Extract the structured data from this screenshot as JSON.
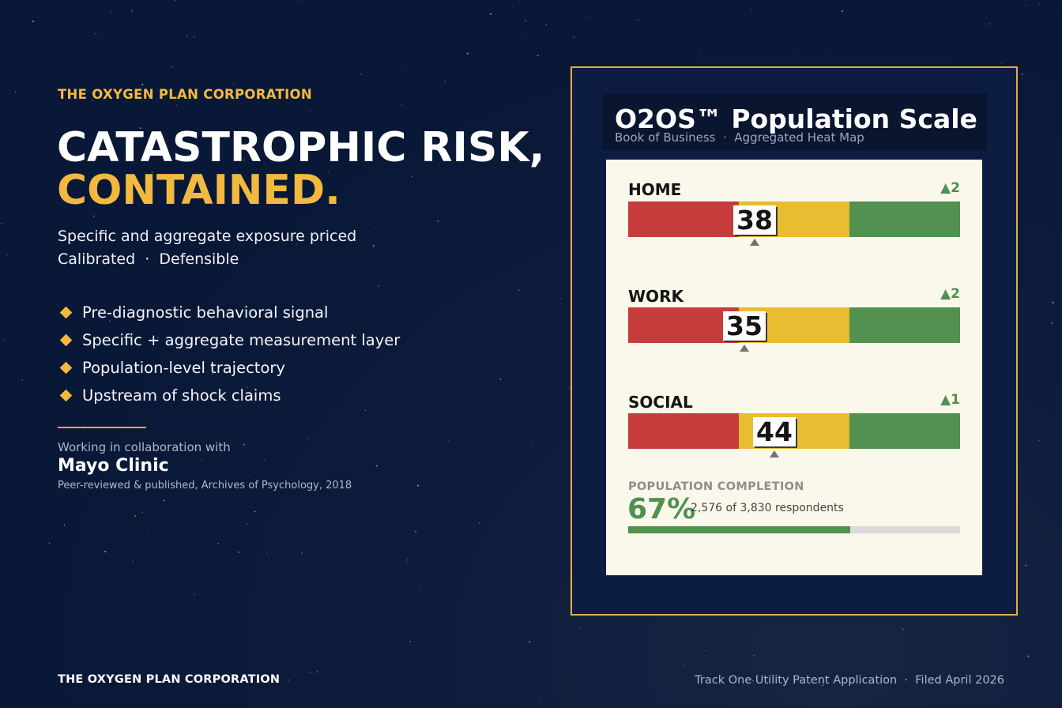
{
  "brand": {
    "eyebrow": "THE OXYGEN PLAN CORPORATION",
    "accent_color": "#f2b940"
  },
  "hero": {
    "headline_line1": "CATASTROPHIC RISK,",
    "headline_line2": "CONTAINED.",
    "subtitle_line1": "Specific and aggregate exposure priced",
    "subtitle_line2": "Calibrated  ·  Defensible"
  },
  "bullets": [
    "Pre-diagnostic behavioral signal",
    "Specific + aggregate measurement layer",
    "Population-level trajectory",
    "Upstream of shock claims"
  ],
  "collaboration": {
    "intro": "Working in collaboration with",
    "partner": "Mayo Clinic",
    "citation": "Peer-reviewed & published, Archives of Psychology, 2018"
  },
  "card": {
    "title": "O2OS™ Population Scale",
    "subtitle": "Book of Business  ·  Aggregated Heat Map",
    "colors": {
      "red": "#c73c3c",
      "yellow": "#e8bd32",
      "green": "#52914f"
    },
    "scales": [
      {
        "label": "HOME",
        "delta": "▲2",
        "score": "38",
        "value": 38
      },
      {
        "label": "WORK",
        "delta": "▲2",
        "score": "35",
        "value": 35
      },
      {
        "label": "SOCIAL",
        "delta": "▲1",
        "score": "44",
        "value": 44
      }
    ],
    "population": {
      "label": "POPULATION COMPLETION",
      "percent": "67%",
      "respondents": "2,576 of 3,830 respondents",
      "fraction": 0.67
    }
  },
  "footer": {
    "left": "THE OXYGEN PLAN CORPORATION",
    "right": "Track One Utility Patent Application  ·  Filed April 2026"
  }
}
